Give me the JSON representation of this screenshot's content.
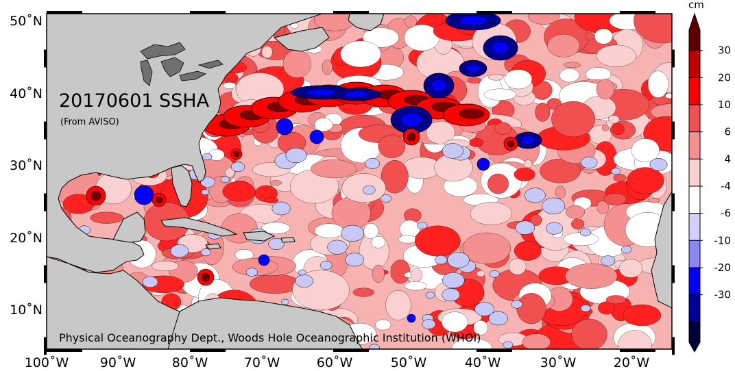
{
  "title": "20170601 SSHA",
  "subtitle": "(From AVISO)",
  "credit": "Physical Oceanography Dept., Woods Hole Oceanographic Institution (WHOI)",
  "lon_labels": [
    "100˚W",
    "90˚W",
    "80˚W",
    "70˚W",
    "60˚W",
    "50˚W",
    "40˚W",
    "30˚W",
    "20˚W"
  ],
  "lat_labels": [
    "50˚N",
    "40˚N",
    "30˚N",
    "20˚N",
    "10˚N"
  ],
  "colorbar": {
    "unit": "cm",
    "tick_labels": [
      "30",
      "20",
      "10",
      "6",
      "4",
      "-4",
      "-6",
      "-10",
      "-20",
      "-30"
    ],
    "colors": [
      "#5a0000",
      "#c00000",
      "#ff0000",
      "#f05050",
      "#f59090",
      "#fbd0d0",
      "#ffffff",
      "#d0d0f8",
      "#8888f0",
      "#0000ff",
      "#000099",
      "#00003a"
    ]
  },
  "colors": {
    "land": "#c8c8c8",
    "ocean_positive": "#f59090",
    "ocean_neutral": "#ffffff",
    "ocean_negative": "#0000ff"
  }
}
